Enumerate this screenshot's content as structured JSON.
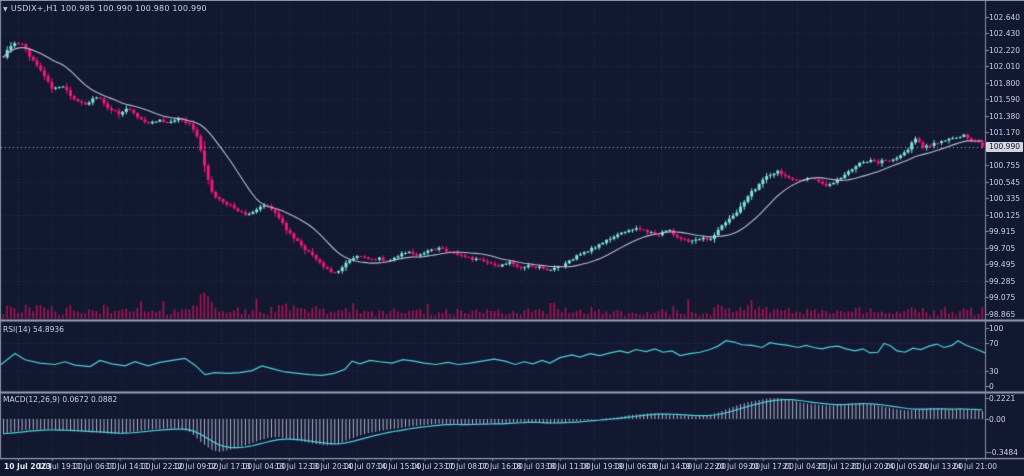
{
  "window": {
    "dropdown_icon": "▼",
    "symbol_period": "USDIX+,H1",
    "ohlc_line": "100.985 100.990 100.980 100.990"
  },
  "colors": {
    "background": "#121830",
    "grid": "#272e52",
    "frame": "#8a90a8",
    "separator": "#9ba1b8",
    "bull": "#7de6dd",
    "bear": "#f2157c",
    "volume": "#ad1257",
    "ma_line": "#b9bdc8",
    "indicator_line": "#4cd3de",
    "histogram": "#b3b8ce",
    "axis_text": "#ccd1e0",
    "price_line": "#a9aec0",
    "tag_bg": "#d3d6e0",
    "tag_text": "#121830"
  },
  "price_axis": {
    "ticks": [
      {
        "label": "102.640",
        "value": 102.64
      },
      {
        "label": "102.430",
        "value": 102.43
      },
      {
        "label": "102.220",
        "value": 102.22
      },
      {
        "label": "102.010",
        "value": 102.01
      },
      {
        "label": "101.800",
        "value": 101.8
      },
      {
        "label": "101.590",
        "value": 101.59
      },
      {
        "label": "101.380",
        "value": 101.38
      },
      {
        "label": "101.170",
        "value": 101.17
      },
      {
        "label": "100.755",
        "value": 100.755
      },
      {
        "label": "100.545",
        "value": 100.545
      },
      {
        "label": "100.335",
        "value": 100.335
      },
      {
        "label": "100.125",
        "value": 100.125
      },
      {
        "label": "99.915",
        "value": 99.915
      },
      {
        "label": "99.705",
        "value": 99.705
      },
      {
        "label": "99.495",
        "value": 99.495
      },
      {
        "label": "99.285",
        "value": 99.285
      },
      {
        "label": "99.075",
        "value": 99.075
      },
      {
        "label": "98.865",
        "value": 98.865
      }
    ],
    "current": {
      "label": "100.990",
      "value": 100.99
    }
  },
  "rsi_panel": {
    "label": "RSI(14) 54.8936",
    "ticks": [
      {
        "label": "100",
        "value": 100
      },
      {
        "label": "70",
        "value": 70
      },
      {
        "label": "30",
        "value": 30
      },
      {
        "label": "0",
        "value": 0
      }
    ],
    "levels": [
      70,
      30
    ]
  },
  "macd_panel": {
    "label": "MACD(12,26,9) 0.0672 0.0882",
    "ticks": [
      {
        "label": "0.2221",
        "value": 0.2221
      },
      {
        "label": "0.00",
        "value": 0
      },
      {
        "label": "-0.3484",
        "value": -0.3484
      }
    ]
  },
  "time_axis": {
    "labels": [
      "10 Jul 2023",
      "10 Jul 19:00",
      "11 Jul 06:00",
      "11 Jul 14:00",
      "11 Jul 22:00",
      "12 Jul 09:00",
      "12 Jul 17:00",
      "13 Jul 04:00",
      "13 Jul 12:00",
      "13 Jul 20:00",
      "14 Jul 07:00",
      "14 Jul 15:00",
      "14 Jul 23:00",
      "17 Jul 08:00",
      "17 Jul 16:00",
      "18 Jul 03:00",
      "18 Jul 11:00",
      "18 Jul 19:00",
      "19 Jul 06:00",
      "19 Jul 14:00",
      "19 Jul 22:00",
      "20 Jul 09:00",
      "20 Jul 17:00",
      "21 Jul 04:00",
      "21 Jul 12:00",
      "21 Jul 20:00",
      "24 Jul 05:00",
      "24 Jul 13:00",
      "24 Jul 21:00"
    ]
  },
  "chart_data": {
    "type": "candlestick",
    "symbol": "USDIX+",
    "timeframe": "H1",
    "title": "USDIX+,H1 100.985 100.990 100.980 100.990",
    "open": "100.985",
    "high": "100.990",
    "low": "100.980",
    "close": "100.990",
    "ylim": [
      98.865,
      102.64
    ],
    "grid": "dotted",
    "legend": "none",
    "bars_estimated": 264,
    "indicators": [
      "Moving Average (price overlay)",
      "Volume histogram",
      "RSI(14)",
      "MACD(12,26,9)"
    ],
    "rsi_scale": [
      0,
      100
    ],
    "rsi_level_lines": [
      30,
      70
    ],
    "macd_scale_marks": [
      0.2221,
      0.0,
      -0.3484
    ],
    "price_path": [
      [
        0,
        102.08
      ],
      [
        8,
        102.23
      ],
      [
        16,
        102.33
      ],
      [
        22,
        102.28
      ],
      [
        30,
        102.11
      ],
      [
        40,
        101.98
      ],
      [
        52,
        101.72
      ],
      [
        62,
        101.77
      ],
      [
        72,
        101.61
      ],
      [
        85,
        101.53
      ],
      [
        97,
        101.63
      ],
      [
        108,
        101.48
      ],
      [
        118,
        101.41
      ],
      [
        128,
        101.47
      ],
      [
        138,
        101.37
      ],
      [
        148,
        101.28
      ],
      [
        158,
        101.33
      ],
      [
        168,
        101.3
      ],
      [
        178,
        101.35
      ],
      [
        188,
        101.28
      ],
      [
        196,
        101.16
      ],
      [
        203,
        100.81
      ],
      [
        210,
        100.43
      ],
      [
        218,
        100.32
      ],
      [
        228,
        100.25
      ],
      [
        238,
        100.18
      ],
      [
        248,
        100.12
      ],
      [
        258,
        100.2
      ],
      [
        266,
        100.25
      ],
      [
        274,
        100.15
      ],
      [
        284,
        99.97
      ],
      [
        294,
        99.81
      ],
      [
        304,
        99.69
      ],
      [
        314,
        99.57
      ],
      [
        324,
        99.46
      ],
      [
        332,
        99.39
      ],
      [
        340,
        99.43
      ],
      [
        350,
        99.55
      ],
      [
        358,
        99.61
      ],
      [
        368,
        99.55
      ],
      [
        378,
        99.57
      ],
      [
        388,
        99.52
      ],
      [
        398,
        99.6
      ],
      [
        408,
        99.65
      ],
      [
        418,
        99.61
      ],
      [
        428,
        99.67
      ],
      [
        438,
        99.7
      ],
      [
        448,
        99.65
      ],
      [
        458,
        99.61
      ],
      [
        468,
        99.57
      ],
      [
        478,
        99.55
      ],
      [
        488,
        99.52
      ],
      [
        498,
        99.48
      ],
      [
        508,
        99.52
      ],
      [
        518,
        99.45
      ],
      [
        528,
        99.48
      ],
      [
        538,
        99.45
      ],
      [
        548,
        99.41
      ],
      [
        558,
        99.45
      ],
      [
        568,
        99.52
      ],
      [
        578,
        99.61
      ],
      [
        588,
        99.67
      ],
      [
        598,
        99.74
      ],
      [
        608,
        99.8
      ],
      [
        618,
        99.87
      ],
      [
        628,
        99.93
      ],
      [
        638,
        99.95
      ],
      [
        648,
        99.9
      ],
      [
        658,
        99.87
      ],
      [
        668,
        99.93
      ],
      [
        678,
        99.83
      ],
      [
        688,
        99.78
      ],
      [
        698,
        99.83
      ],
      [
        708,
        99.8
      ],
      [
        718,
        99.93
      ],
      [
        728,
        100.06
      ],
      [
        738,
        100.18
      ],
      [
        748,
        100.37
      ],
      [
        758,
        100.5
      ],
      [
        768,
        100.63
      ],
      [
        778,
        100.67
      ],
      [
        788,
        100.59
      ],
      [
        798,
        100.57
      ],
      [
        808,
        100.59
      ],
      [
        818,
        100.54
      ],
      [
        828,
        100.5
      ],
      [
        838,
        100.57
      ],
      [
        848,
        100.67
      ],
      [
        858,
        100.76
      ],
      [
        868,
        100.82
      ],
      [
        878,
        100.79
      ],
      [
        888,
        100.82
      ],
      [
        898,
        100.85
      ],
      [
        908,
        100.96
      ],
      [
        914,
        101.09
      ],
      [
        922,
        100.99
      ],
      [
        930,
        101.01
      ],
      [
        938,
        101.05
      ],
      [
        946,
        101.08
      ],
      [
        954,
        101.1
      ],
      [
        962,
        101.14
      ],
      [
        970,
        101.08
      ],
      [
        978,
        101.04
      ],
      [
        984,
        100.99
      ]
    ],
    "rsi_path": [
      [
        0,
        38
      ],
      [
        15,
        55
      ],
      [
        25,
        46
      ],
      [
        40,
        41
      ],
      [
        55,
        39
      ],
      [
        65,
        43
      ],
      [
        75,
        38
      ],
      [
        90,
        36
      ],
      [
        100,
        45
      ],
      [
        112,
        40
      ],
      [
        125,
        37
      ],
      [
        135,
        43
      ],
      [
        148,
        37
      ],
      [
        160,
        42
      ],
      [
        172,
        45
      ],
      [
        185,
        48
      ],
      [
        195,
        38
      ],
      [
        205,
        24
      ],
      [
        215,
        27
      ],
      [
        228,
        26
      ],
      [
        240,
        27
      ],
      [
        252,
        30
      ],
      [
        262,
        37
      ],
      [
        272,
        33
      ],
      [
        285,
        28
      ],
      [
        298,
        26
      ],
      [
        310,
        24
      ],
      [
        322,
        23
      ],
      [
        334,
        26
      ],
      [
        345,
        32
      ],
      [
        352,
        44
      ],
      [
        360,
        40
      ],
      [
        370,
        45
      ],
      [
        380,
        43
      ],
      [
        392,
        41
      ],
      [
        403,
        46
      ],
      [
        414,
        44
      ],
      [
        424,
        41
      ],
      [
        436,
        39
      ],
      [
        448,
        42
      ],
      [
        458,
        39
      ],
      [
        470,
        41
      ],
      [
        482,
        44
      ],
      [
        494,
        47
      ],
      [
        505,
        44
      ],
      [
        515,
        39
      ],
      [
        524,
        43
      ],
      [
        533,
        40
      ],
      [
        542,
        45
      ],
      [
        550,
        41
      ],
      [
        560,
        49
      ],
      [
        572,
        53
      ],
      [
        580,
        50
      ],
      [
        590,
        55
      ],
      [
        600,
        52
      ],
      [
        610,
        56
      ],
      [
        620,
        59
      ],
      [
        628,
        56
      ],
      [
        636,
        61
      ],
      [
        646,
        58
      ],
      [
        655,
        62
      ],
      [
        663,
        57
      ],
      [
        672,
        59
      ],
      [
        680,
        52
      ],
      [
        690,
        55
      ],
      [
        700,
        57
      ],
      [
        710,
        61
      ],
      [
        718,
        66
      ],
      [
        726,
        74
      ],
      [
        734,
        72
      ],
      [
        742,
        68
      ],
      [
        752,
        67
      ],
      [
        762,
        64
      ],
      [
        770,
        71
      ],
      [
        778,
        69
      ],
      [
        788,
        67
      ],
      [
        798,
        64
      ],
      [
        806,
        67
      ],
      [
        814,
        64
      ],
      [
        822,
        62
      ],
      [
        830,
        65
      ],
      [
        838,
        66
      ],
      [
        846,
        62
      ],
      [
        855,
        59
      ],
      [
        863,
        62
      ],
      [
        870,
        56
      ],
      [
        878,
        57
      ],
      [
        884,
        70
      ],
      [
        890,
        67
      ],
      [
        897,
        59
      ],
      [
        905,
        57
      ],
      [
        913,
        63
      ],
      [
        921,
        61
      ],
      [
        929,
        66
      ],
      [
        937,
        69
      ],
      [
        944,
        64
      ],
      [
        952,
        67
      ],
      [
        958,
        74
      ],
      [
        965,
        68
      ],
      [
        972,
        64
      ],
      [
        979,
        60
      ],
      [
        985,
        56
      ]
    ],
    "macd_hist_path": [
      [
        0,
        -0.16
      ],
      [
        15,
        -0.13
      ],
      [
        30,
        -0.11
      ],
      [
        45,
        -0.11
      ],
      [
        60,
        -0.12
      ],
      [
        75,
        -0.13
      ],
      [
        90,
        -0.14
      ],
      [
        105,
        -0.15
      ],
      [
        120,
        -0.16
      ],
      [
        135,
        -0.13
      ],
      [
        150,
        -0.11
      ],
      [
        165,
        -0.1
      ],
      [
        180,
        -0.1
      ],
      [
        190,
        -0.14
      ],
      [
        200,
        -0.24
      ],
      [
        210,
        -0.32
      ],
      [
        218,
        -0.35
      ],
      [
        228,
        -0.33
      ],
      [
        238,
        -0.3
      ],
      [
        248,
        -0.27
      ],
      [
        258,
        -0.23
      ],
      [
        268,
        -0.2
      ],
      [
        278,
        -0.19
      ],
      [
        288,
        -0.21
      ],
      [
        298,
        -0.23
      ],
      [
        308,
        -0.25
      ],
      [
        318,
        -0.27
      ],
      [
        328,
        -0.28
      ],
      [
        338,
        -0.26
      ],
      [
        348,
        -0.22
      ],
      [
        358,
        -0.18
      ],
      [
        368,
        -0.15
      ],
      [
        378,
        -0.13
      ],
      [
        388,
        -0.11
      ],
      [
        398,
        -0.1
      ],
      [
        408,
        -0.08
      ],
      [
        418,
        -0.07
      ],
      [
        428,
        -0.06
      ],
      [
        438,
        -0.05
      ],
      [
        448,
        -0.05
      ],
      [
        458,
        -0.06
      ],
      [
        468,
        -0.06
      ],
      [
        478,
        -0.05
      ],
      [
        488,
        -0.05
      ],
      [
        498,
        -0.05
      ],
      [
        508,
        -0.04
      ],
      [
        518,
        -0.03
      ],
      [
        528,
        -0.03
      ],
      [
        538,
        -0.04
      ],
      [
        548,
        -0.05
      ],
      [
        558,
        -0.04
      ],
      [
        568,
        -0.03
      ],
      [
        578,
        -0.02
      ],
      [
        588,
        -0.01
      ],
      [
        598,
        0.0
      ],
      [
        608,
        0.01
      ],
      [
        618,
        0.02
      ],
      [
        628,
        0.04
      ],
      [
        638,
        0.05
      ],
      [
        648,
        0.06
      ],
      [
        658,
        0.06
      ],
      [
        668,
        0.05
      ],
      [
        678,
        0.04
      ],
      [
        688,
        0.03
      ],
      [
        698,
        0.03
      ],
      [
        708,
        0.04
      ],
      [
        718,
        0.07
      ],
      [
        728,
        0.11
      ],
      [
        738,
        0.15
      ],
      [
        748,
        0.18
      ],
      [
        758,
        0.2
      ],
      [
        768,
        0.22
      ],
      [
        778,
        0.22
      ],
      [
        788,
        0.21
      ],
      [
        798,
        0.18
      ],
      [
        808,
        0.16
      ],
      [
        818,
        0.15
      ],
      [
        828,
        0.14
      ],
      [
        838,
        0.15
      ],
      [
        848,
        0.16
      ],
      [
        858,
        0.17
      ],
      [
        868,
        0.16
      ],
      [
        878,
        0.14
      ],
      [
        888,
        0.12
      ],
      [
        898,
        0.1
      ],
      [
        908,
        0.09
      ],
      [
        918,
        0.1
      ],
      [
        928,
        0.11
      ],
      [
        938,
        0.11
      ],
      [
        948,
        0.1
      ],
      [
        958,
        0.11
      ],
      [
        968,
        0.1
      ],
      [
        978,
        0.09
      ],
      [
        985,
        0.08
      ]
    ]
  }
}
